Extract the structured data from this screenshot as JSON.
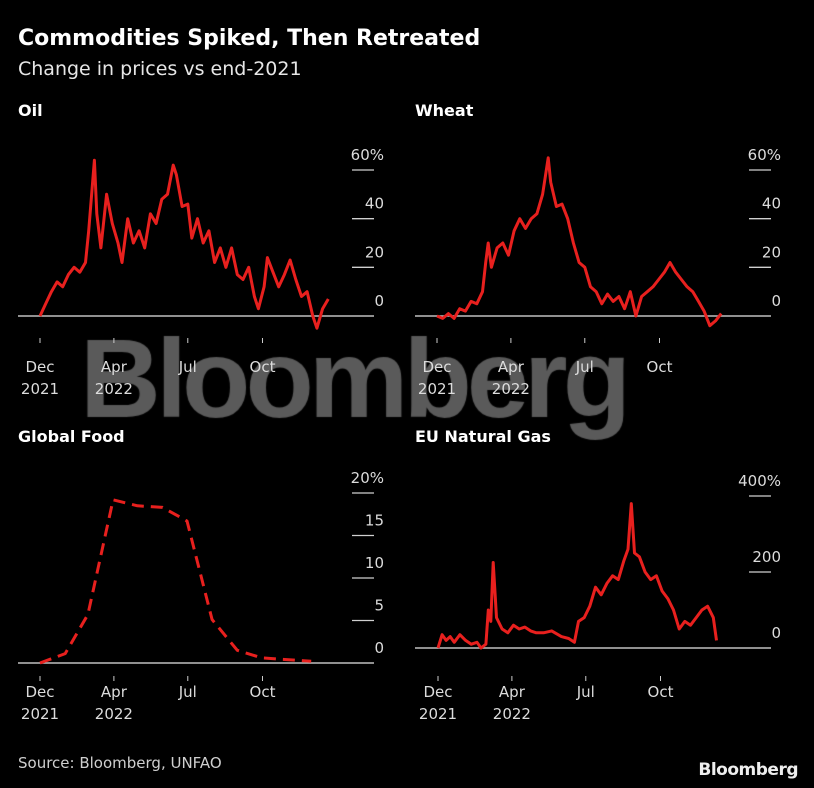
{
  "title": "Commodities Spiked, Then Retreated",
  "subtitle": "Change in prices vs end-2021",
  "source": "Source: Bloomberg, UNFAO",
  "logo": "Bloomberg",
  "watermark": "Bloomberg",
  "colors": {
    "line": "#e8201e",
    "background": "#000000",
    "baseline": "#bfbfbf"
  },
  "chart_data": [
    {
      "type": "line",
      "title": "Oil",
      "ylim": [
        -5,
        65
      ],
      "yticks": [
        {
          "v": 0,
          "label": "0"
        },
        {
          "v": 20,
          "label": "20"
        },
        {
          "v": 40,
          "label": "40"
        },
        {
          "v": 60,
          "label": "60%"
        }
      ],
      "xticks": [
        {
          "date": "2021-12-31",
          "label": [
            "Dec",
            "2021"
          ]
        },
        {
          "date": "2022-04-01",
          "label": [
            "Apr",
            "2022"
          ]
        },
        {
          "date": "2022-07-01",
          "label": [
            "Jul",
            ""
          ]
        },
        {
          "date": "2022-10-01",
          "label": [
            "Oct",
            ""
          ]
        }
      ],
      "dashed": false,
      "points": [
        [
          "2021-12-31",
          0
        ],
        [
          "2022-01-07",
          5
        ],
        [
          "2022-01-14",
          10
        ],
        [
          "2022-01-21",
          14
        ],
        [
          "2022-01-28",
          12
        ],
        [
          "2022-02-04",
          17
        ],
        [
          "2022-02-11",
          20
        ],
        [
          "2022-02-18",
          18
        ],
        [
          "2022-02-25",
          22
        ],
        [
          "2022-03-01",
          35
        ],
        [
          "2022-03-08",
          64
        ],
        [
          "2022-03-11",
          42
        ],
        [
          "2022-03-16",
          28
        ],
        [
          "2022-03-23",
          50
        ],
        [
          "2022-03-30",
          38
        ],
        [
          "2022-04-06",
          30
        ],
        [
          "2022-04-11",
          22
        ],
        [
          "2022-04-18",
          40
        ],
        [
          "2022-04-25",
          30
        ],
        [
          "2022-05-02",
          35
        ],
        [
          "2022-05-09",
          28
        ],
        [
          "2022-05-16",
          42
        ],
        [
          "2022-05-23",
          38
        ],
        [
          "2022-05-30",
          48
        ],
        [
          "2022-06-06",
          50
        ],
        [
          "2022-06-13",
          62
        ],
        [
          "2022-06-17",
          58
        ],
        [
          "2022-06-24",
          45
        ],
        [
          "2022-07-01",
          46
        ],
        [
          "2022-07-06",
          32
        ],
        [
          "2022-07-13",
          40
        ],
        [
          "2022-07-20",
          30
        ],
        [
          "2022-07-27",
          35
        ],
        [
          "2022-08-03",
          22
        ],
        [
          "2022-08-10",
          28
        ],
        [
          "2022-08-17",
          20
        ],
        [
          "2022-08-24",
          28
        ],
        [
          "2022-08-31",
          17
        ],
        [
          "2022-09-07",
          15
        ],
        [
          "2022-09-14",
          20
        ],
        [
          "2022-09-21",
          8
        ],
        [
          "2022-09-26",
          3
        ],
        [
          "2022-10-03",
          12
        ],
        [
          "2022-10-07",
          24
        ],
        [
          "2022-10-14",
          18
        ],
        [
          "2022-10-21",
          12
        ],
        [
          "2022-10-28",
          17
        ],
        [
          "2022-11-04",
          23
        ],
        [
          "2022-11-11",
          15
        ],
        [
          "2022-11-18",
          8
        ],
        [
          "2022-11-25",
          10
        ],
        [
          "2022-12-02",
          0
        ],
        [
          "2022-12-07",
          -5
        ],
        [
          "2022-12-14",
          3
        ],
        [
          "2022-12-21",
          7
        ]
      ]
    },
    {
      "type": "line",
      "title": "Wheat",
      "ylim": [
        -5,
        65
      ],
      "yticks": [
        {
          "v": 0,
          "label": "0"
        },
        {
          "v": 20,
          "label": "20"
        },
        {
          "v": 40,
          "label": "40"
        },
        {
          "v": 60,
          "label": "60%"
        }
      ],
      "xticks": [
        {
          "date": "2021-12-31",
          "label": [
            "Dec",
            "2021"
          ]
        },
        {
          "date": "2022-04-01",
          "label": [
            "Apr",
            "2022"
          ]
        },
        {
          "date": "2022-07-01",
          "label": [
            "Jul",
            ""
          ]
        },
        {
          "date": "2022-10-01",
          "label": [
            "Oct",
            ""
          ]
        }
      ],
      "dashed": false,
      "points": [
        [
          "2021-12-31",
          0
        ],
        [
          "2022-01-07",
          -1
        ],
        [
          "2022-01-14",
          1
        ],
        [
          "2022-01-21",
          -1
        ],
        [
          "2022-01-28",
          3
        ],
        [
          "2022-02-04",
          2
        ],
        [
          "2022-02-11",
          6
        ],
        [
          "2022-02-18",
          5
        ],
        [
          "2022-02-25",
          10
        ],
        [
          "2022-03-01",
          22
        ],
        [
          "2022-03-04",
          30
        ],
        [
          "2022-03-08",
          20
        ],
        [
          "2022-03-15",
          28
        ],
        [
          "2022-03-22",
          30
        ],
        [
          "2022-03-29",
          25
        ],
        [
          "2022-04-05",
          35
        ],
        [
          "2022-04-12",
          40
        ],
        [
          "2022-04-19",
          36
        ],
        [
          "2022-04-26",
          40
        ],
        [
          "2022-05-03",
          42
        ],
        [
          "2022-05-10",
          50
        ],
        [
          "2022-05-17",
          65
        ],
        [
          "2022-05-20",
          55
        ],
        [
          "2022-05-27",
          45
        ],
        [
          "2022-06-03",
          46
        ],
        [
          "2022-06-10",
          40
        ],
        [
          "2022-06-17",
          30
        ],
        [
          "2022-06-24",
          22
        ],
        [
          "2022-07-01",
          20
        ],
        [
          "2022-07-08",
          12
        ],
        [
          "2022-07-15",
          10
        ],
        [
          "2022-07-22",
          5
        ],
        [
          "2022-07-29",
          9
        ],
        [
          "2022-08-05",
          6
        ],
        [
          "2022-08-12",
          8
        ],
        [
          "2022-08-19",
          3
        ],
        [
          "2022-08-26",
          10
        ],
        [
          "2022-09-02",
          0
        ],
        [
          "2022-09-09",
          8
        ],
        [
          "2022-09-16",
          10
        ],
        [
          "2022-09-23",
          12
        ],
        [
          "2022-09-30",
          15
        ],
        [
          "2022-10-07",
          18
        ],
        [
          "2022-10-14",
          22
        ],
        [
          "2022-10-21",
          18
        ],
        [
          "2022-10-28",
          15
        ],
        [
          "2022-11-04",
          12
        ],
        [
          "2022-11-11",
          10
        ],
        [
          "2022-11-18",
          6
        ],
        [
          "2022-11-25",
          2
        ],
        [
          "2022-12-02",
          -4
        ],
        [
          "2022-12-09",
          -2
        ],
        [
          "2022-12-16",
          1
        ]
      ]
    },
    {
      "type": "line",
      "title": "Global Food",
      "ylim": [
        -1,
        21
      ],
      "yticks": [
        {
          "v": 0,
          "label": "0"
        },
        {
          "v": 5,
          "label": "5"
        },
        {
          "v": 10,
          "label": "10"
        },
        {
          "v": 15,
          "label": "15"
        },
        {
          "v": 20,
          "label": "20%"
        }
      ],
      "xticks": [
        {
          "date": "2021-12-31",
          "label": [
            "Dec",
            "2021"
          ]
        },
        {
          "date": "2022-04-01",
          "label": [
            "Apr",
            "2022"
          ]
        },
        {
          "date": "2022-07-01",
          "label": [
            "Jul",
            ""
          ]
        },
        {
          "date": "2022-10-01",
          "label": [
            "Oct",
            ""
          ]
        }
      ],
      "dashed": true,
      "points": [
        [
          "2021-12-31",
          0
        ],
        [
          "2022-01-31",
          1.1
        ],
        [
          "2022-02-28",
          5.7
        ],
        [
          "2022-03-31",
          19.2
        ],
        [
          "2022-04-30",
          18.5
        ],
        [
          "2022-05-31",
          18.3
        ],
        [
          "2022-06-30",
          16.7
        ],
        [
          "2022-07-31",
          5.1
        ],
        [
          "2022-08-31",
          1.5
        ],
        [
          "2022-09-30",
          0.6
        ],
        [
          "2022-10-31",
          0.4
        ],
        [
          "2022-11-30",
          0.2
        ]
      ]
    },
    {
      "type": "line",
      "title": "EU Natural Gas",
      "ylim": [
        -20,
        420
      ],
      "yticks": [
        {
          "v": 0,
          "label": "0"
        },
        {
          "v": 200,
          "label": "200"
        },
        {
          "v": 400,
          "label": "400%"
        }
      ],
      "xticks": [
        {
          "date": "2021-12-31",
          "label": [
            "Dec",
            "2021"
          ]
        },
        {
          "date": "2022-04-01",
          "label": [
            "Apr",
            "2022"
          ]
        },
        {
          "date": "2022-07-01",
          "label": [
            "Jul",
            ""
          ]
        },
        {
          "date": "2022-10-01",
          "label": [
            "Oct",
            ""
          ]
        }
      ],
      "dashed": false,
      "points": [
        [
          "2021-12-31",
          0
        ],
        [
          "2022-01-05",
          35
        ],
        [
          "2022-01-10",
          20
        ],
        [
          "2022-01-15",
          30
        ],
        [
          "2022-01-20",
          15
        ],
        [
          "2022-01-27",
          35
        ],
        [
          "2022-02-03",
          20
        ],
        [
          "2022-02-10",
          10
        ],
        [
          "2022-02-17",
          15
        ],
        [
          "2022-02-22",
          0
        ],
        [
          "2022-02-28",
          10
        ],
        [
          "2022-03-03",
          100
        ],
        [
          "2022-03-06",
          70
        ],
        [
          "2022-03-09",
          225
        ],
        [
          "2022-03-13",
          80
        ],
        [
          "2022-03-20",
          50
        ],
        [
          "2022-03-27",
          40
        ],
        [
          "2022-04-03",
          60
        ],
        [
          "2022-04-10",
          50
        ],
        [
          "2022-04-17",
          55
        ],
        [
          "2022-04-24",
          45
        ],
        [
          "2022-05-01",
          40
        ],
        [
          "2022-05-10",
          40
        ],
        [
          "2022-05-20",
          45
        ],
        [
          "2022-06-01",
          30
        ],
        [
          "2022-06-10",
          25
        ],
        [
          "2022-06-17",
          15
        ],
        [
          "2022-06-22",
          70
        ],
        [
          "2022-06-29",
          80
        ],
        [
          "2022-07-06",
          110
        ],
        [
          "2022-07-13",
          160
        ],
        [
          "2022-07-20",
          140
        ],
        [
          "2022-07-27",
          170
        ],
        [
          "2022-08-03",
          190
        ],
        [
          "2022-08-10",
          180
        ],
        [
          "2022-08-17",
          230
        ],
        [
          "2022-08-22",
          260
        ],
        [
          "2022-08-26",
          380
        ],
        [
          "2022-08-30",
          250
        ],
        [
          "2022-09-05",
          240
        ],
        [
          "2022-09-12",
          200
        ],
        [
          "2022-09-19",
          180
        ],
        [
          "2022-09-26",
          190
        ],
        [
          "2022-10-03",
          150
        ],
        [
          "2022-10-10",
          130
        ],
        [
          "2022-10-17",
          100
        ],
        [
          "2022-10-24",
          50
        ],
        [
          "2022-10-31",
          70
        ],
        [
          "2022-11-07",
          60
        ],
        [
          "2022-11-14",
          80
        ],
        [
          "2022-11-21",
          100
        ],
        [
          "2022-11-28",
          110
        ],
        [
          "2022-12-05",
          80
        ],
        [
          "2022-12-09",
          20
        ]
      ]
    }
  ]
}
